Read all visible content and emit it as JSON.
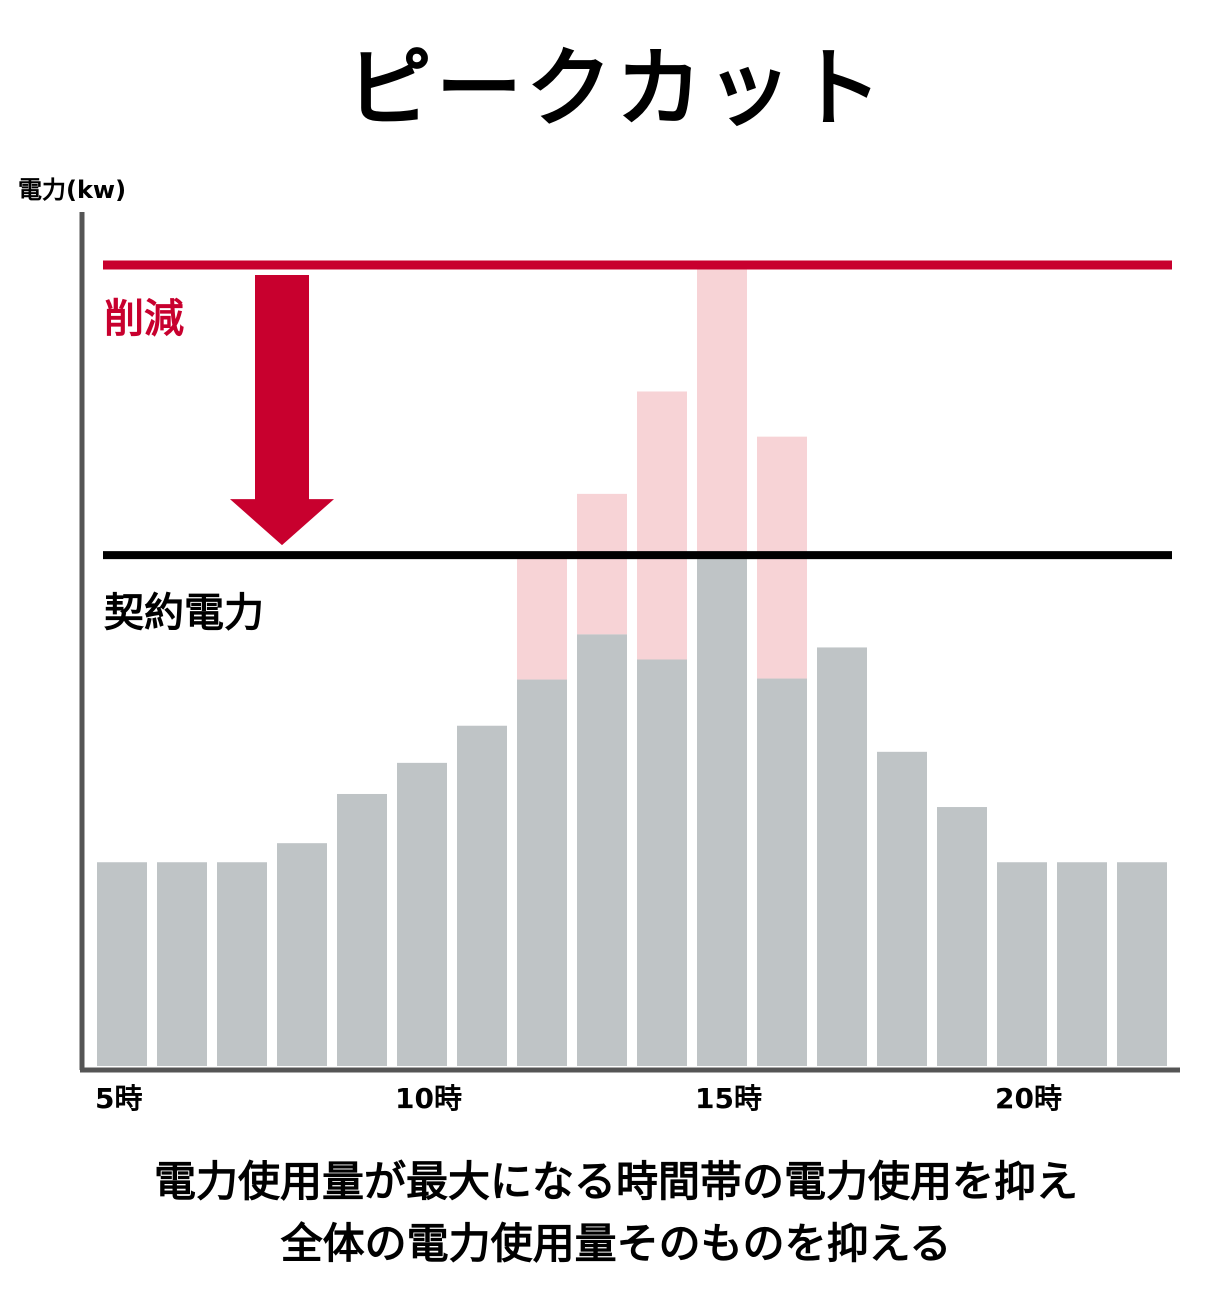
{
  "title": "ピークカット",
  "caption": {
    "line1": "電力使用量が最大になる時間帯の電力使用を抑え",
    "line2": "全体の電力使用量そのものを抑える"
  },
  "colors": {
    "bar": "#bfc4c6",
    "reduced": "#f7d3d6",
    "accent": "#c8002e",
    "axis": "#555555",
    "contract_line": "#000000"
  },
  "chart_data": {
    "type": "bar",
    "ylabel": "電力(kw)",
    "x": [
      5,
      6,
      7,
      8,
      9,
      10,
      11,
      12,
      13,
      14,
      15,
      16,
      17,
      18,
      19,
      20,
      21,
      22
    ],
    "x_tick_labels": [
      {
        "x": 5,
        "label": "5時"
      },
      {
        "x": 10,
        "label": "10時"
      },
      {
        "x": 15,
        "label": "15時"
      },
      {
        "x": 20,
        "label": "20時"
      }
    ],
    "series": [
      {
        "values": [
          203,
          203,
          203,
          222,
          271,
          302,
          339,
          385,
          430,
          405,
          509,
          386,
          417,
          313,
          258,
          203,
          203,
          203
        ]
      },
      {
        "values": [
          0,
          0,
          0,
          0,
          0,
          0,
          0,
          124,
          140,
          267,
          290,
          241,
          0,
          0,
          0,
          0,
          0,
          0
        ]
      }
    ],
    "ylim": [
      0,
      800
    ],
    "reference_lines": [
      {
        "value": 800,
        "label": "削減"
      },
      {
        "value": 509,
        "label": "契約電力"
      }
    ]
  }
}
